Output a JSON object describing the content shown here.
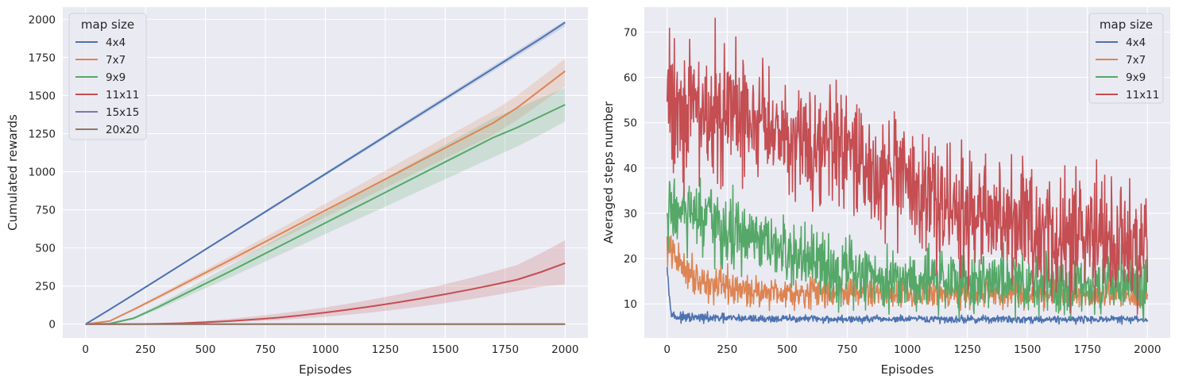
{
  "colors": {
    "plot_bg": "#EAEAF2",
    "grid": "#FFFFFF",
    "series": {
      "4x4": "#4C72B0",
      "7x7": "#DD8452",
      "9x9": "#55A868",
      "11x11": "#C44E52",
      "15x15": "#8172B3",
      "20x20": "#937860"
    }
  },
  "chart_data": [
    {
      "type": "line",
      "title": "",
      "xlabel": "Episodes",
      "ylabel": "Cumulated rewards",
      "xlim": [
        -95,
        2095
      ],
      "ylim": [
        -90,
        2080
      ],
      "xticks": [
        0,
        250,
        500,
        750,
        1000,
        1250,
        1500,
        1750,
        2000
      ],
      "yticks": [
        0,
        250,
        500,
        750,
        1000,
        1250,
        1500,
        1750,
        2000
      ],
      "grid": true,
      "legend": {
        "title": "map size",
        "placement": "top-left"
      },
      "x": [
        0,
        100,
        200,
        300,
        400,
        500,
        600,
        700,
        800,
        900,
        1000,
        1100,
        1200,
        1300,
        1400,
        1500,
        1600,
        1700,
        1800,
        1900,
        2000
      ],
      "series": [
        {
          "name": "4x4",
          "values": [
            0,
            95,
            193,
            292,
            391,
            490,
            589,
            688,
            787,
            886,
            985,
            1084,
            1183,
            1282,
            1381,
            1480,
            1579,
            1678,
            1777,
            1876,
            1980
          ],
          "lower": [
            0,
            94,
            190,
            288,
            386,
            484,
            582,
            680,
            778,
            876,
            974,
            1072,
            1170,
            1268,
            1366,
            1464,
            1562,
            1660,
            1758,
            1856,
            1955
          ],
          "upper": [
            0,
            96,
            195,
            295,
            395,
            495,
            595,
            695,
            795,
            895,
            995,
            1095,
            1195,
            1295,
            1395,
            1495,
            1595,
            1695,
            1795,
            1895,
            1990
          ]
        },
        {
          "name": "7x7",
          "values": [
            0,
            20,
            95,
            175,
            256,
            337,
            418,
            500,
            582,
            664,
            746,
            828,
            910,
            992,
            1074,
            1156,
            1238,
            1320,
            1420,
            1540,
            1660
          ],
          "lower": [
            0,
            18,
            88,
            163,
            240,
            317,
            394,
            471,
            548,
            625,
            702,
            779,
            856,
            933,
            1010,
            1087,
            1164,
            1241,
            1340,
            1450,
            1560
          ],
          "upper": [
            0,
            22,
            102,
            187,
            272,
            357,
            442,
            529,
            616,
            703,
            790,
            877,
            964,
            1051,
            1138,
            1225,
            1312,
            1399,
            1500,
            1620,
            1740
          ]
        },
        {
          "name": "9x9",
          "values": [
            0,
            3,
            38,
            110,
            188,
            266,
            344,
            424,
            504,
            584,
            664,
            744,
            824,
            904,
            984,
            1064,
            1144,
            1224,
            1290,
            1365,
            1440
          ],
          "lower": [
            0,
            2,
            30,
            95,
            165,
            235,
            305,
            375,
            447,
            519,
            591,
            663,
            735,
            807,
            879,
            951,
            1023,
            1095,
            1165,
            1245,
            1330
          ],
          "upper": [
            0,
            4,
            46,
            125,
            211,
            297,
            383,
            473,
            561,
            649,
            737,
            825,
            913,
            1001,
            1089,
            1177,
            1265,
            1353,
            1415,
            1485,
            1550
          ]
        },
        {
          "name": "11x11",
          "values": [
            0,
            0,
            0,
            2,
            6,
            12,
            20,
            30,
            42,
            58,
            76,
            96,
            118,
            142,
            168,
            196,
            226,
            258,
            292,
            342,
            400
          ],
          "lower": [
            0,
            0,
            0,
            1,
            3,
            7,
            12,
            18,
            26,
            36,
            48,
            62,
            78,
            96,
            116,
            138,
            162,
            188,
            216,
            246,
            260
          ],
          "upper": [
            0,
            0,
            1,
            5,
            12,
            22,
            35,
            50,
            68,
            88,
            110,
            135,
            163,
            193,
            226,
            262,
            301,
            343,
            388,
            465,
            550
          ]
        },
        {
          "name": "15x15",
          "values": [
            0,
            0,
            0,
            0,
            0,
            0,
            0,
            0,
            0,
            0,
            0,
            0,
            0,
            0,
            0,
            0,
            0,
            0,
            0,
            0,
            0
          ]
        },
        {
          "name": "20x20",
          "values": [
            0,
            0,
            0,
            0,
            0,
            0,
            0,
            0,
            0,
            0,
            0,
            0,
            0,
            0,
            0,
            0,
            0,
            0,
            0,
            0,
            0
          ]
        }
      ]
    },
    {
      "type": "line",
      "title": "",
      "xlabel": "Episodes",
      "ylabel": "Averaged steps number",
      "xlim": [
        -95,
        2095
      ],
      "ylim": [
        2.5,
        75.5
      ],
      "xticks": [
        0,
        250,
        500,
        750,
        1000,
        1250,
        1500,
        1750,
        2000
      ],
      "yticks": [
        10,
        20,
        30,
        40,
        50,
        60,
        70
      ],
      "grid": true,
      "legend": {
        "title": "map size",
        "placement": "top-right"
      },
      "x": [
        0,
        10,
        20,
        30,
        50,
        100,
        150,
        200,
        300,
        400,
        500,
        600,
        700,
        800,
        900,
        1000,
        1100,
        1200,
        1300,
        1400,
        1500,
        1600,
        1700,
        1800,
        1900,
        2000
      ],
      "series": [
        {
          "name": "4x4",
          "noise": 0.4,
          "values": [
            19,
            11,
            8,
            7.2,
            7,
            6.9,
            6.9,
            6.8,
            6.8,
            6.7,
            6.7,
            6.7,
            6.6,
            6.6,
            6.6,
            6.6,
            6.6,
            6.6,
            6.6,
            6.6,
            6.6,
            6.6,
            6.6,
            6.6,
            6.6,
            6.5
          ]
        },
        {
          "name": "7x7",
          "noise": 1.6,
          "values": [
            22,
            22,
            21,
            20.5,
            19,
            17,
            15,
            14,
            13,
            12.8,
            12.6,
            12.6,
            12.5,
            12.5,
            12.5,
            12.4,
            12.4,
            12.4,
            12.3,
            12.3,
            12.2,
            12.2,
            12.2,
            12.1,
            12.1,
            12
          ]
        },
        {
          "name": "9x9",
          "noise": 3.5,
          "values": [
            27,
            30,
            31,
            31,
            30,
            29,
            28,
            27,
            25,
            23,
            21,
            19,
            17.5,
            16.5,
            16,
            15.5,
            15.5,
            15.3,
            15.2,
            15,
            15,
            15,
            15,
            14.8,
            14.8,
            14.5
          ]
        },
        {
          "name": "11x11",
          "noise": 6.5,
          "values": [
            55,
            56,
            55,
            55,
            54,
            53,
            52,
            52,
            51,
            50,
            48,
            46,
            44,
            41,
            38,
            35,
            33,
            31,
            29,
            28,
            26,
            25.5,
            25,
            24.5,
            24,
            24
          ]
        }
      ]
    }
  ]
}
